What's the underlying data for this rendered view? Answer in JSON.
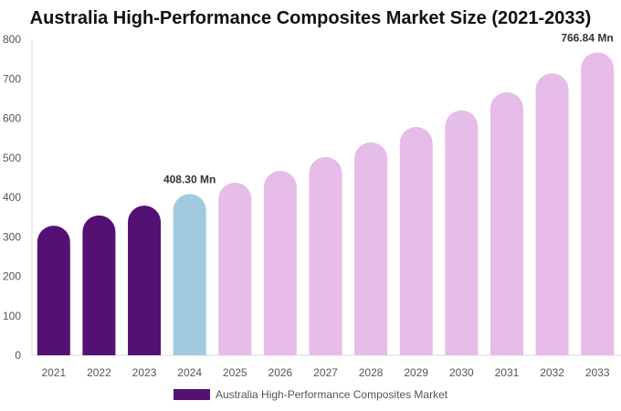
{
  "chart_data": {
    "type": "bar",
    "title": "Australia High-Performance Composites Market Size (2021-2033)",
    "categories": [
      "2021",
      "2022",
      "2023",
      "2024",
      "2025",
      "2026",
      "2027",
      "2028",
      "2029",
      "2030",
      "2031",
      "2032",
      "2033"
    ],
    "series": [
      {
        "name": "Australia High-Performance Composites Market",
        "values": [
          328,
          354,
          379,
          408.3,
          437,
          467,
          502,
          539,
          578,
          620,
          666,
          714,
          766.84
        ]
      }
    ],
    "ylim": [
      0,
      800
    ],
    "yticks": [
      0,
      100,
      200,
      300,
      400,
      500,
      600,
      700,
      800
    ],
    "data_labels": [
      {
        "index": 3,
        "text": "408.30 Mn"
      },
      {
        "index": 12,
        "text": "766.84 Mn"
      }
    ],
    "colors": {
      "historical": "#541173",
      "base_year": "#a2cade",
      "forecast": "#e6bce8"
    },
    "grid": false,
    "legend": "bottom"
  }
}
